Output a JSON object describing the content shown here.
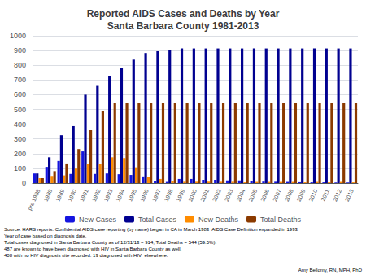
{
  "chart_data": {
    "type": "bar",
    "title": "Reported AIDS Cases and Deaths by Year\nSanta Barbara County 1981-2013",
    "categories": [
      "pre 1988",
      "1988",
      "1989",
      "1990",
      "1991",
      "1992",
      "1993",
      "1994",
      "1995",
      "1996",
      "1997",
      "1998",
      "1999",
      "2000",
      "2001",
      "2002",
      "2003",
      "2004",
      "2005",
      "2006",
      "2007",
      "2008",
      "2009",
      "2010",
      "2011",
      "2012",
      "2013"
    ],
    "series": [
      {
        "name": "New Cases",
        "color": "#1515e0",
        "values": [
          65,
          110,
          150,
          62,
          215,
          62,
          65,
          60,
          55,
          45,
          12,
          8,
          28,
          28,
          22,
          22,
          18,
          18,
          14,
          10,
          9,
          8,
          6,
          5,
          5,
          4,
          4
        ]
      },
      {
        "name": "Total Cases",
        "color": "#000090",
        "values": [
          65,
          175,
          325,
          387,
          600,
          660,
          725,
          783,
          838,
          883,
          895,
          903,
          914,
          914,
          914,
          914,
          914,
          914,
          914,
          914,
          914,
          914,
          914,
          914,
          914,
          914,
          914
        ]
      },
      {
        "name": "New Deaths",
        "color": "#ff8c00",
        "values": [
          33,
          48,
          52,
          98,
          128,
          128,
          175,
          170,
          107,
          44,
          28,
          14,
          9,
          9,
          9,
          9,
          9,
          5,
          8,
          8,
          8,
          8,
          5,
          8,
          5,
          8,
          5
        ]
      },
      {
        "name": "Total Deaths",
        "color": "#8b3a00",
        "values": [
          33,
          81,
          133,
          231,
          359,
          487,
          544,
          544,
          544,
          544,
          544,
          544,
          544,
          544,
          544,
          544,
          544,
          544,
          544,
          544,
          544,
          544,
          544,
          544,
          544,
          544,
          544
        ]
      }
    ],
    "ylim": [
      0,
      1000
    ],
    "yticks": [
      0,
      100,
      200,
      300,
      400,
      500,
      600,
      700,
      800,
      900,
      1000
    ],
    "grid": true,
    "legend": "bottom",
    "annotations": [
      "Source: HARS reports. Confidential AIDS case reporting (by name) began in CA in March 1983  AIDS Case Definition expanded in 1993\nYear of case based on diagnosis date.\nTotal cases diagnosed in Santa Barbara County as of 12/31/13 = 914; Total Deaths = 544 (59.5%).\n487 are known to have been diagnosed with HIV in Santa Barbara County as well.\n408 with no HIV diagnosis site recorded. 19 diagnosed with HIV  elsewhere.",
      "Amy Bellomy, RN, MPH, PhD"
    ]
  }
}
